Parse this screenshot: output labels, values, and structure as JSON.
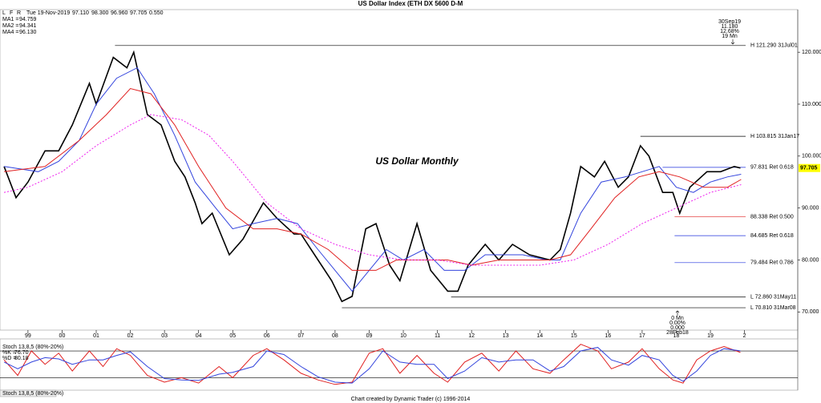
{
  "chart_data": [
    {
      "type": "line",
      "title": "US Dollar Index (ETH DX 5600 D-M",
      "subtitle": "US Dollar Monthly",
      "toolbar": [
        "L",
        "F",
        "R"
      ],
      "info": {
        "date": "Tue 19-Nov-2019",
        "quote": [
          "97.110",
          "98.300",
          "96.960",
          "97.705"
        ],
        "change": "0.550"
      },
      "xlim": [
        1998.18,
        2021.56
      ],
      "xticks": [
        {
          "value": 1999,
          "label": "99"
        },
        {
          "value": 2000,
          "label": "00"
        },
        {
          "value": 2001,
          "label": "01"
        },
        {
          "value": 2002,
          "label": "02"
        },
        {
          "value": 2003,
          "label": "03"
        },
        {
          "value": 2004,
          "label": "04"
        },
        {
          "value": 2005,
          "label": "05"
        },
        {
          "value": 2006,
          "label": "06"
        },
        {
          "value": 2007,
          "label": "07"
        },
        {
          "value": 2008,
          "label": "08"
        },
        {
          "value": 2009,
          "label": "09"
        },
        {
          "value": 2010,
          "label": "10"
        },
        {
          "value": 2011,
          "label": "11"
        },
        {
          "value": 2012,
          "label": "12"
        },
        {
          "value": 2013,
          "label": "13"
        },
        {
          "value": 2014,
          "label": "14"
        },
        {
          "value": 2015,
          "label": "15"
        },
        {
          "value": 2016,
          "label": "16"
        },
        {
          "value": 2017,
          "label": "17"
        },
        {
          "value": 2018,
          "label": "18"
        },
        {
          "value": 2019,
          "label": "19"
        },
        {
          "value": 2020,
          "label": "2"
        }
      ],
      "ylim": [
        66.5,
        128.2
      ],
      "yticks": [
        {
          "value": 70,
          "label": "70.000"
        },
        {
          "value": 80,
          "label": "80.000"
        },
        {
          "value": 90,
          "label": "90.000"
        },
        {
          "value": 100,
          "label": "100.000"
        },
        {
          "value": 110,
          "label": "110.000"
        },
        {
          "value": 120,
          "label": "120.000"
        }
      ],
      "last": {
        "value": 97.705,
        "label": "97.705"
      },
      "series": [
        {
          "color": "#000000",
          "width": 1.6,
          "x": [
            1998.3,
            1998.65,
            1999.0,
            1999.5,
            1999.9,
            2000.3,
            2000.8,
            2001.0,
            2001.5,
            2001.9,
            2002.1,
            2002.5,
            2002.9,
            2003.3,
            2003.6,
            2003.9,
            2004.1,
            2004.4,
            2004.9,
            2005.3,
            2005.9,
            2006.3,
            2006.8,
            2007.0,
            2007.3,
            2007.9,
            2008.2,
            2008.5,
            2008.9,
            2009.2,
            2009.6,
            2009.9,
            2010.4,
            2010.8,
            2011.3,
            2011.6,
            2011.9,
            2012.4,
            2012.8,
            2013.2,
            2013.7,
            2014.3,
            2014.6,
            2014.9,
            2015.2,
            2015.6,
            2015.9,
            2016.3,
            2016.6,
            2016.95,
            2017.2,
            2017.6,
            2017.9,
            2018.1,
            2018.4,
            2018.9,
            2019.3,
            2019.7,
            2019.88
          ],
          "values": [
            98,
            92,
            95,
            101,
            101,
            106,
            114,
            110,
            119,
            117,
            120,
            108,
            106,
            99,
            96,
            91,
            87,
            89,
            81,
            84,
            91,
            88,
            85,
            85,
            82,
            76,
            72,
            73,
            86,
            87,
            79,
            76,
            87,
            78,
            74,
            74,
            79,
            83,
            80,
            83,
            81,
            80,
            82,
            89,
            98,
            96,
            99,
            94,
            96,
            102,
            100,
            93,
            93,
            89,
            94,
            97,
            97,
            98,
            97.7
          ]
        },
        {
          "name": "MA1 =",
          "legend_value": "94.759",
          "color": "#3344dd",
          "width": 1,
          "x": [
            1998.3,
            1999.3,
            1999.9,
            2000.5,
            2001.0,
            2001.6,
            2002.2,
            2002.7,
            2003.3,
            2003.9,
            2004.5,
            2005.0,
            2005.6,
            2006.3,
            2006.9,
            2007.5,
            2008.0,
            2008.5,
            2009.0,
            2009.5,
            2010.0,
            2010.6,
            2011.2,
            2011.8,
            2012.4,
            2013.0,
            2013.5,
            2014.2,
            2014.6,
            2015.2,
            2015.8,
            2016.5,
            2017.0,
            2017.5,
            2018.0,
            2018.5,
            2019.0,
            2019.5,
            2019.9
          ],
          "values": [
            98,
            97,
            99,
            103,
            110,
            115,
            117,
            112,
            104,
            95,
            90,
            86,
            87,
            88,
            87,
            82,
            78,
            74,
            78,
            82,
            80,
            82,
            78,
            78,
            81,
            81,
            81,
            80,
            80,
            89,
            95,
            96,
            97,
            98,
            94,
            93,
            95,
            96,
            96.5
          ]
        },
        {
          "name": "MA2 =",
          "legend_value": "94.341",
          "color": "#e02020",
          "width": 1,
          "x": [
            1998.3,
            1999.5,
            2000.5,
            2001.3,
            2002.0,
            2002.6,
            2003.3,
            2004.0,
            2004.8,
            2005.6,
            2006.3,
            2007.0,
            2007.8,
            2008.5,
            2009.2,
            2009.8,
            2010.5,
            2011.3,
            2012.0,
            2012.8,
            2013.5,
            2014.3,
            2014.9,
            2015.5,
            2016.2,
            2016.9,
            2017.5,
            2018.1,
            2018.8,
            2019.5,
            2019.9
          ],
          "values": [
            97,
            98,
            103,
            108,
            113,
            112,
            106,
            98,
            90,
            86,
            86,
            85,
            82,
            78,
            78,
            80,
            80,
            80,
            79,
            80,
            80,
            80,
            81,
            86,
            92,
            96,
            97,
            96,
            94,
            94,
            95.5
          ]
        },
        {
          "name": "MA4 =",
          "legend_value": "96.130",
          "color": "#ee22ee",
          "width": 1,
          "dashed": true,
          "x": [
            1998.3,
            1999.0,
            2000.0,
            2001.0,
            2002.0,
            2002.6,
            2003.5,
            2004.3,
            2005.0,
            2006.0,
            2007.0,
            2008.0,
            2009.0,
            2010.0,
            2011.0,
            2012.0,
            2013.0,
            2014.0,
            2015.0,
            2016.0,
            2017.0,
            2018.0,
            2019.0,
            2019.9
          ],
          "values": [
            93,
            94,
            97,
            102,
            106,
            108,
            107,
            104,
            99,
            91,
            86,
            83,
            81,
            80,
            80,
            79,
            79,
            79,
            80,
            83,
            87,
            90,
            93,
            94.5
          ]
        }
      ],
      "levels": [
        {
          "label": "H 121.290 31Jul01",
          "value": 121.29,
          "start": 2001.55,
          "color": "#000000"
        },
        {
          "label": "H 103.815 31Jan17",
          "value": 103.815,
          "start": 2016.95,
          "color": "#000000"
        },
        {
          "label": "97.831 Ret 0.618",
          "value": 97.831,
          "start": 2017.6,
          "color": "#2233dd"
        },
        {
          "label": "88.338 Ret 0.500",
          "value": 88.338,
          "start": 2017.95,
          "color": "#e02020"
        },
        {
          "label": "84.685 Ret 0.618",
          "value": 84.685,
          "start": 2017.95,
          "color": "#2233dd"
        },
        {
          "label": "79.484 Ret 0.786",
          "value": 79.484,
          "start": 2017.95,
          "color": "#2233dd"
        },
        {
          "label": "L 72.860 31May11",
          "value": 72.86,
          "start": 2011.4,
          "color": "#000000"
        },
        {
          "label": "L 70.810 31Mar08",
          "value": 70.81,
          "start": 2008.2,
          "color": "#000000"
        }
      ],
      "annotations": [
        {
          "lines": [
            "30Sep19",
            "11.180",
            "12.68%",
            "19 Mn"
          ]
        },
        {
          "lines": [
            "0 Mn",
            "0.00%",
            "0.000",
            "28Feb18"
          ]
        }
      ]
    },
    {
      "type": "line",
      "title": "Stoch 13,8,5 (80%-20%)",
      "tab": "Stoch 13,8,5 (80%-20%)",
      "footer": "Chart created by Dynamic Trader  (c) 1996-2014",
      "xlim": [
        1998.18,
        2021.56
      ],
      "ylim": [
        -8,
        107
      ],
      "levels": [
        20,
        80
      ],
      "x": [
        1998.3,
        1998.7,
        1999.1,
        1999.5,
        1999.9,
        2000.3,
        2000.8,
        2001.2,
        2001.6,
        2002.0,
        2002.5,
        2003.0,
        2003.5,
        2004.0,
        2004.6,
        2005.0,
        2005.6,
        2006.0,
        2006.5,
        2007.0,
        2007.5,
        2008.0,
        2008.5,
        2009.0,
        2009.4,
        2009.9,
        2010.4,
        2010.9,
        2011.3,
        2011.8,
        2012.3,
        2012.8,
        2013.3,
        2013.8,
        2014.3,
        2014.7,
        2015.2,
        2015.7,
        2016.1,
        2016.6,
        2017.0,
        2017.5,
        2017.9,
        2018.2,
        2018.6,
        2019.0,
        2019.4,
        2019.88
      ],
      "series": [
        {
          "name": "%K =",
          "legend_value": "76.70",
          "color": "#e02020",
          "values": [
            60,
            25,
            80,
            50,
            75,
            35,
            80,
            45,
            85,
            70,
            25,
            10,
            20,
            8,
            45,
            20,
            70,
            85,
            60,
            30,
            15,
            5,
            10,
            75,
            85,
            30,
            70,
            30,
            10,
            55,
            75,
            35,
            80,
            40,
            30,
            60,
            95,
            80,
            40,
            55,
            85,
            40,
            15,
            8,
            60,
            80,
            90,
            76.7
          ]
        },
        {
          "name": "%D =",
          "legend_value": "80.18",
          "color": "#3344dd",
          "values": [
            55,
            40,
            55,
            65,
            62,
            50,
            60,
            60,
            70,
            78,
            45,
            18,
            15,
            14,
            28,
            32,
            45,
            80,
            72,
            45,
            22,
            10,
            8,
            40,
            80,
            55,
            50,
            50,
            18,
            35,
            65,
            55,
            60,
            60,
            35,
            45,
            80,
            88,
            60,
            48,
            70,
            60,
            25,
            12,
            35,
            70,
            85,
            80.18
          ]
        }
      ]
    }
  ]
}
